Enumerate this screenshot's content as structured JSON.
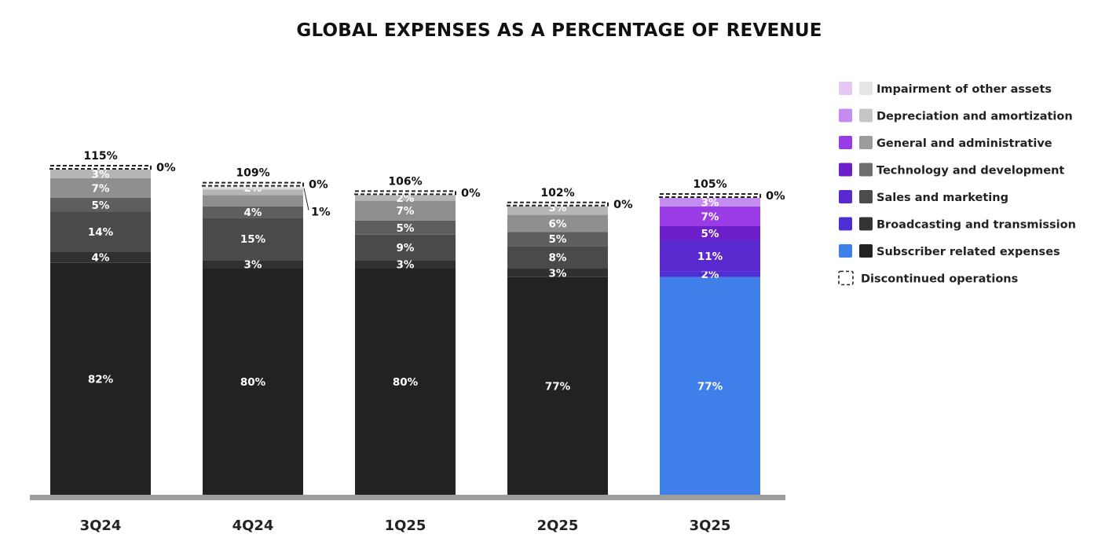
{
  "chart_data": {
    "type": "bar",
    "stacked": true,
    "title": "GLOBAL EXPENSES AS A PERCENTAGE OF REVENUE",
    "categories": [
      "3Q24",
      "4Q24",
      "1Q25",
      "2Q25",
      "3Q25"
    ],
    "totals": [
      "115%",
      "109%",
      "106%",
      "102%",
      "105%"
    ],
    "discontinued_labels": [
      "0%",
      "0%",
      "0%",
      "0%",
      "0%"
    ],
    "ylim": [
      0,
      120
    ],
    "series": [
      {
        "name": "Subscriber related expenses",
        "values": [
          82,
          80,
          80,
          77,
          77
        ],
        "labels": [
          "82%",
          "80%",
          "80%",
          "77%",
          "77%"
        ]
      },
      {
        "name": "Broadcasting and transmission",
        "values": [
          4,
          3,
          3,
          3,
          2
        ],
        "labels": [
          "4%",
          "3%",
          "3%",
          "3%",
          "2%"
        ]
      },
      {
        "name": "Sales and marketing",
        "values": [
          14,
          15,
          9,
          8,
          11
        ],
        "labels": [
          "14%",
          "15%",
          "9%",
          "8%",
          "11%"
        ]
      },
      {
        "name": "Technology and development",
        "values": [
          5,
          4,
          5,
          5,
          5
        ],
        "labels": [
          "5%",
          "4%",
          "5%",
          "5%",
          "5%"
        ]
      },
      {
        "name": "General and administrative",
        "values": [
          7,
          4,
          7,
          6,
          7
        ],
        "labels": [
          "7%",
          "",
          "7%",
          "6%",
          "7%"
        ]
      },
      {
        "name": "Depreciation and amortization",
        "values": [
          3,
          2,
          2,
          3,
          3
        ],
        "labels": [
          "3%",
          "2%",
          "2%",
          "3%",
          "3%"
        ]
      },
      {
        "name": "Impairment of other assets",
        "values": [
          0,
          1,
          0,
          0,
          0
        ],
        "labels": [
          "",
          "1%",
          "",
          "",
          ""
        ]
      }
    ],
    "highlight_category": "3Q25",
    "colors": {
      "gray": [
        "#222222",
        "#303030",
        "#4a4a4a",
        "#5e5e5e",
        "#8f8f8f",
        "#b5b5b5",
        "#dddddd"
      ],
      "highlight": [
        "#3f7fea",
        "#4e2fd6",
        "#5a28cf",
        "#6c1fc8",
        "#9a3ce6",
        "#c58cf0",
        "#e4c9f7"
      ],
      "baseline": "#9e9e9e"
    },
    "legend": {
      "position": "right",
      "items": [
        {
          "label": "Impairment of other assets",
          "color": "#e4c9f7",
          "gray": "#e6e6e6"
        },
        {
          "label": "Depreciation and amortization",
          "color": "#c58cf0",
          "gray": "#c6c6c6"
        },
        {
          "label": "General and administrative",
          "color": "#9a3ce6",
          "gray": "#9c9c9c"
        },
        {
          "label": "Technology and development",
          "color": "#6c1fc8",
          "gray": "#6e6e6e"
        },
        {
          "label": "Sales and marketing",
          "color": "#5a28cf",
          "gray": "#4c4c4c"
        },
        {
          "label": "Broadcasting and transmission",
          "color": "#4e2fd6",
          "gray": "#333333"
        },
        {
          "label": "Subscriber related expenses",
          "color": "#3f7fea",
          "gray": "#222222"
        },
        {
          "label": "Discontinued operations",
          "dashed": true
        }
      ]
    }
  }
}
